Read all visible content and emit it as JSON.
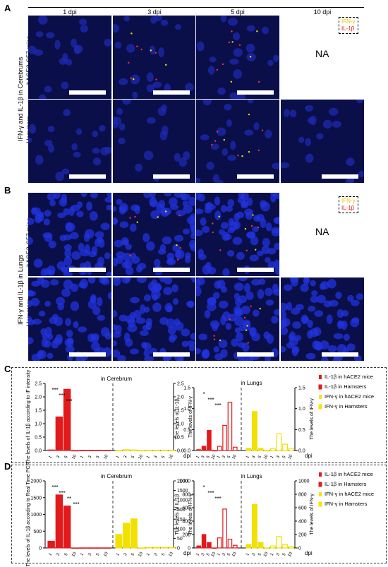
{
  "panels": {
    "A": {
      "letter": "A",
      "side_label": "IFN-γ and IL-1β in Cerebrums",
      "columns": [
        "1 dpi",
        "3 dpi",
        "5 dpi",
        "10 dpi"
      ],
      "rows": [
        "hACE2-C57 mice",
        "Hamsters"
      ],
      "na": "NA",
      "legend": [
        "IFN-γ",
        "IL-1β"
      ]
    },
    "B": {
      "letter": "B",
      "side_label": "IFN-γ and IL-1β in Lungs",
      "rows": [
        "hACE2-C57 mice",
        "Hamsters"
      ],
      "na": "NA",
      "legend": [
        "IFN-γ",
        "IL-1β"
      ]
    },
    "C": {
      "letter": "C"
    },
    "D": {
      "letter": "D"
    }
  },
  "legend": [
    {
      "label": "IL-1β in hACE2 mice",
      "color": "#e31a1c"
    },
    {
      "label": "IL-1β in Hamsters",
      "color": "#e31a1c"
    },
    {
      "label": "IFN-γ in hACE2 mice",
      "color": "#f5e400"
    },
    {
      "label": "IFN-γ in Hamsters",
      "color": "#f5e400"
    }
  ],
  "chart_data": [
    {
      "type": "bar",
      "panel": "C",
      "subtitle": "in Cerebrum",
      "ylabel_left": "The levels of IL-1β according to IF intensity",
      "ylabel_right": "The levels of IFN-γ",
      "ylim": [
        0,
        2.5
      ],
      "yticks": [
        "0.0",
        "0.5",
        "1.0",
        "1.5",
        "2.0",
        "2.5"
      ],
      "xlabel": "dpi",
      "categories": [
        "1",
        "3",
        "5",
        "10"
      ],
      "series": [
        {
          "name": "IL-1β in hACE2 mice",
          "values": [
            0.02,
            1.25,
            2.28,
            0
          ]
        },
        {
          "name": "IL-1β in Hamsters",
          "values": [
            0.01,
            0.01,
            0.01,
            0.01
          ]
        },
        {
          "name": "IFN-γ in hACE2 mice",
          "values": [
            0.01,
            0.03,
            0.02,
            0
          ]
        },
        {
          "name": "IFN-γ in Hamsters",
          "values": [
            0.01,
            0.01,
            0.01,
            0.01
          ]
        }
      ],
      "annotations": [
        "***",
        "***",
        "***"
      ]
    },
    {
      "type": "bar",
      "panel": "C",
      "subtitle": "in Lungs",
      "ylabel_left": "The levels of IL-1β",
      "ylabel_right": "The levels of IFN-γ",
      "ylim": [
        0,
        1.5
      ],
      "yticks": [
        "0.0",
        "0.5",
        "1.0",
        "1.5"
      ],
      "xlabel": "dpi",
      "categories": [
        "1",
        "3",
        "5",
        "10"
      ],
      "series": [
        {
          "name": "IL-1β in hACE2 mice",
          "values": [
            0.02,
            0.1,
            0.48,
            0
          ]
        },
        {
          "name": "IL-1β in Hamsters",
          "values": [
            0.1,
            0.6,
            1.15,
            0.08
          ]
        },
        {
          "name": "IFN-γ in hACE2 mice",
          "values": [
            0.05,
            0.93,
            0.05,
            0
          ]
        },
        {
          "name": "IFN-γ in Hamsters",
          "values": [
            0.05,
            0.4,
            0.15,
            0.05
          ]
        }
      ],
      "annotations": [
        "*",
        "***",
        "***"
      ]
    },
    {
      "type": "bar",
      "panel": "D",
      "subtitle": "in Cerebrum",
      "ylabel_left": "The levels of IL-1β according to Real Time PCR",
      "ylabel_right": "The levels of IFN-γ",
      "yticks_left": [
        "0",
        "500",
        "1000",
        "1500",
        "2000"
      ],
      "yticks_right": [
        "0",
        "50",
        "100",
        "150",
        "500",
        "1000",
        "1500",
        "2000"
      ],
      "xlabel": "dpi",
      "categories": [
        "1",
        "3",
        "5",
        "10"
      ],
      "series": [
        {
          "name": "IL-1β in hACE2 mice",
          "values": [
            200,
            1580,
            1250,
            0
          ]
        },
        {
          "name": "IL-1β in Hamsters",
          "values": [
            2,
            2,
            2,
            2
          ]
        },
        {
          "name": "IFN-γ in hACE2 mice",
          "values": [
            30,
            55,
            65,
            0
          ]
        },
        {
          "name": "IFN-γ in Hamsters",
          "values": [
            1,
            1,
            1,
            1
          ]
        }
      ],
      "annotations": [
        "***",
        "***",
        "**",
        "***"
      ]
    },
    {
      "type": "bar",
      "panel": "D",
      "subtitle": "in Lungs",
      "ylabel_left": "The levels of IL-1β",
      "ylabel_right": "The levels of IFN-γ",
      "ylim": [
        0,
        1000
      ],
      "yticks": [
        "0",
        "200",
        "400",
        "600",
        "800",
        "1000"
      ],
      "xlabel": "dpi",
      "categories": [
        "1",
        "3",
        "5",
        "10"
      ],
      "series": [
        {
          "name": "IL-1β in hACE2 mice",
          "values": [
            30,
            200,
            80,
            0
          ]
        },
        {
          "name": "IL-1β in Hamsters",
          "values": [
            150,
            580,
            130,
            40
          ]
        },
        {
          "name": "IFN-γ in hACE2 mice",
          "values": [
            50,
            650,
            80,
            0
          ]
        },
        {
          "name": "IFN-γ in Hamsters",
          "values": [
            30,
            170,
            50,
            20
          ]
        }
      ],
      "annotations": [
        "*",
        "***",
        "***"
      ]
    }
  ]
}
